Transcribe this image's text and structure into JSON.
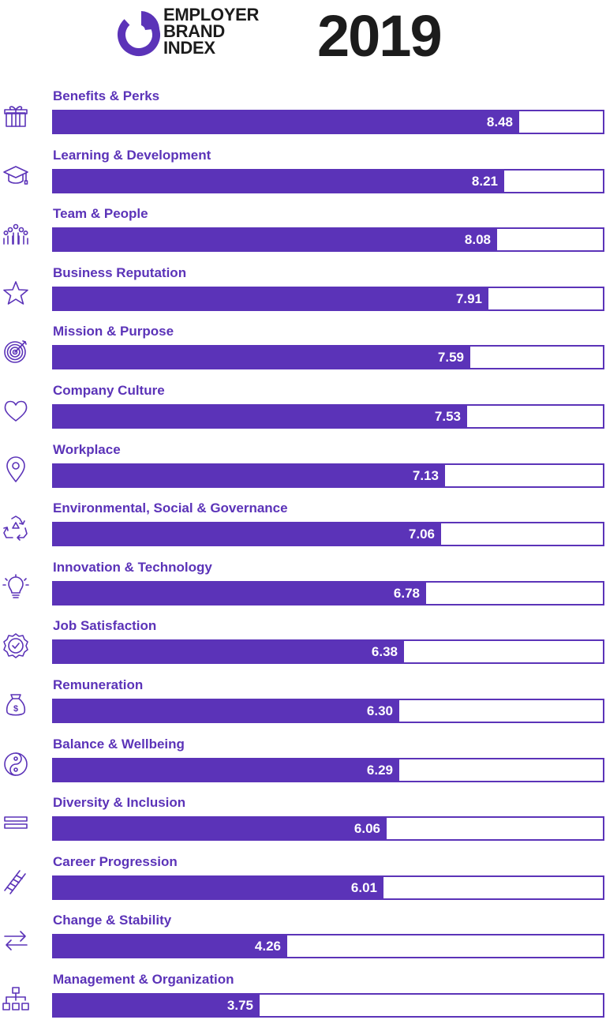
{
  "header": {
    "brand_line1": "EMPLOYER",
    "brand_line2": "BRAND",
    "brand_line3": "INDEX",
    "year": "2019"
  },
  "colors": {
    "accent": "#5b33b8",
    "text_dark": "#1c1c1c",
    "background": "#ffffff"
  },
  "chart_data": {
    "type": "bar",
    "orientation": "horizontal",
    "title": "",
    "xlabel": "",
    "ylabel": "",
    "xlim": [
      0,
      10
    ],
    "grid": false,
    "legend": "none",
    "categories": [
      "Benefits & Perks",
      "Learning & Development",
      "Team & People",
      "Business Reputation",
      "Mission & Purpose",
      "Company Culture",
      "Workplace",
      "Environmental, Social & Governance",
      "Innovation & Technology",
      "Job Satisfaction",
      "Remuneration",
      "Balance & Wellbeing",
      "Diversity & Inclusion",
      "Career Progression",
      "Change & Stability",
      "Management & Organization"
    ],
    "values": [
      8.48,
      8.21,
      8.08,
      7.91,
      7.59,
      7.53,
      7.13,
      7.06,
      6.78,
      6.38,
      6.3,
      6.29,
      6.06,
      6.01,
      4.26,
      3.75
    ],
    "data_labels": [
      "8.48",
      "8.21",
      "8.08",
      "7.91",
      "7.59",
      "7.53",
      "7.13",
      "7.06",
      "6.78",
      "6.38",
      "6.30",
      "6.29",
      "6.06",
      "6.01",
      "4.26",
      "3.75"
    ],
    "icons": [
      "gift-icon",
      "graduation-cap-icon",
      "people-group-icon",
      "star-icon",
      "target-icon",
      "heart-icon",
      "location-pin-icon",
      "recycle-icon",
      "lightbulb-icon",
      "badge-check-icon",
      "money-bag-icon",
      "yin-yang-icon",
      "equals-icon",
      "ladder-icon",
      "exchange-arrows-icon",
      "org-chart-icon"
    ]
  }
}
